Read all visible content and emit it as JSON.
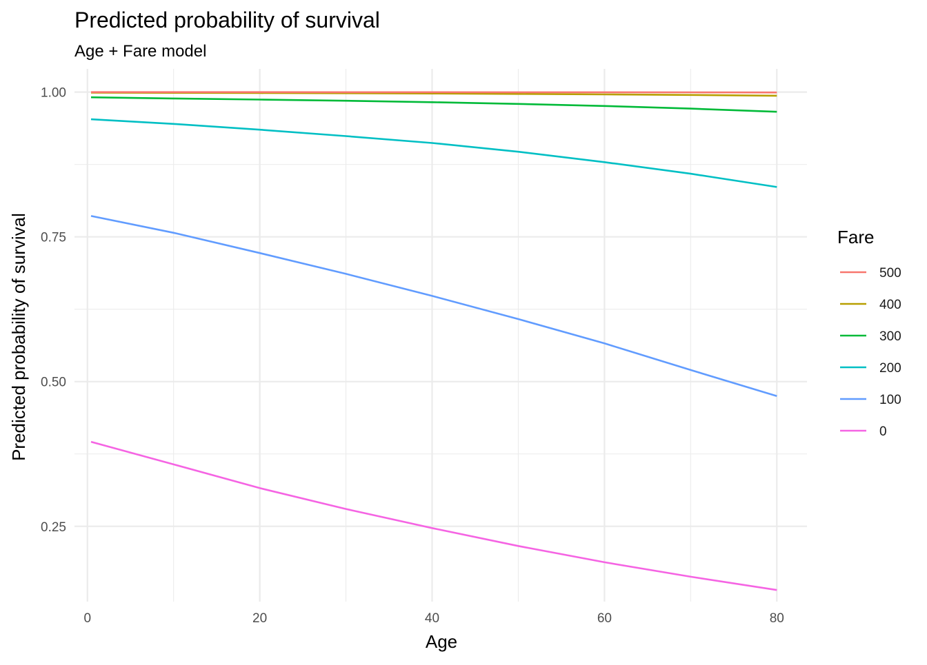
{
  "chart_data": {
    "type": "line",
    "title": "Predicted probability of survival",
    "subtitle": "Age + Fare model",
    "xlabel": "Age",
    "ylabel": "Predicted probability of survival",
    "xlim": [
      -1.5,
      83.5
    ],
    "ylim": [
      0.12,
      1.04
    ],
    "x_ticks": [
      0,
      20,
      40,
      60,
      80
    ],
    "x_tick_labels": [
      "0",
      "20",
      "40",
      "60",
      "80"
    ],
    "x_minor_ticks": [
      10,
      30,
      50,
      70
    ],
    "y_ticks": [
      0.25,
      0.5,
      0.75,
      1.0
    ],
    "y_tick_labels": [
      "0.25",
      "0.50",
      "0.75",
      "1.00"
    ],
    "y_minor_ticks": [
      0.375,
      0.625,
      0.875
    ],
    "grid": true,
    "legend_title": "Fare",
    "legend_position": "right",
    "x": [
      0.42,
      10,
      20,
      30,
      40,
      50,
      60,
      70,
      80
    ],
    "series": [
      {
        "name": "500",
        "color": "#F8766D",
        "values": [
          0.9999,
          0.9999,
          0.9999,
          0.9998,
          0.9998,
          0.9997,
          0.9996,
          0.9995,
          0.9993
        ]
      },
      {
        "name": "400",
        "color": "#B79F00",
        "values": [
          0.999,
          0.9987,
          0.9984,
          0.998,
          0.9975,
          0.9968,
          0.996,
          0.995,
          0.9937
        ]
      },
      {
        "name": "300",
        "color": "#00BA38",
        "values": [
          0.991,
          0.989,
          0.987,
          0.985,
          0.9825,
          0.9795,
          0.976,
          0.9715,
          0.966
        ]
      },
      {
        "name": "200",
        "color": "#00BFC4",
        "values": [
          0.953,
          0.945,
          0.935,
          0.924,
          0.912,
          0.897,
          0.879,
          0.859,
          0.836
        ]
      },
      {
        "name": "100",
        "color": "#619CFF",
        "values": [
          0.786,
          0.757,
          0.722,
          0.686,
          0.648,
          0.608,
          0.566,
          0.52,
          0.475
        ]
      },
      {
        "name": "0",
        "color": "#F564E3",
        "values": [
          0.396,
          0.357,
          0.316,
          0.28,
          0.247,
          0.216,
          0.188,
          0.163,
          0.14
        ]
      }
    ]
  }
}
